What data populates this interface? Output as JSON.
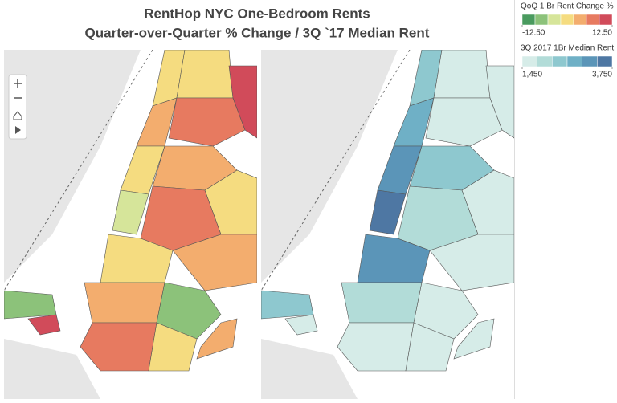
{
  "title": [
    "RentHop NYC One-Bedroom Rents",
    "Quarter-over-Quarter % Change / 3Q `17 Median Rent"
  ],
  "legends": [
    {
      "title": "QoQ 1 Br Rent Change %",
      "min": {
        "value": -12.5,
        "label": "-12.50"
      },
      "max": {
        "value": 12.5,
        "label": "12.50"
      },
      "colors": [
        "#4a9b5f",
        "#8cc27a",
        "#d6e59a",
        "#f5dc80",
        "#f3ad6e",
        "#e77a60",
        "#d14b5a"
      ]
    },
    {
      "title": "3Q 2017 1Br Median Rent",
      "min": {
        "value": 1450,
        "label": "1,450"
      },
      "max": {
        "value": 3750,
        "label": "3,750"
      },
      "colors": [
        "#d6ece8",
        "#b2dcd8",
        "#8ec8cf",
        "#6fb0c6",
        "#5b95b8",
        "#4e77a3"
      ]
    }
  ]
}
